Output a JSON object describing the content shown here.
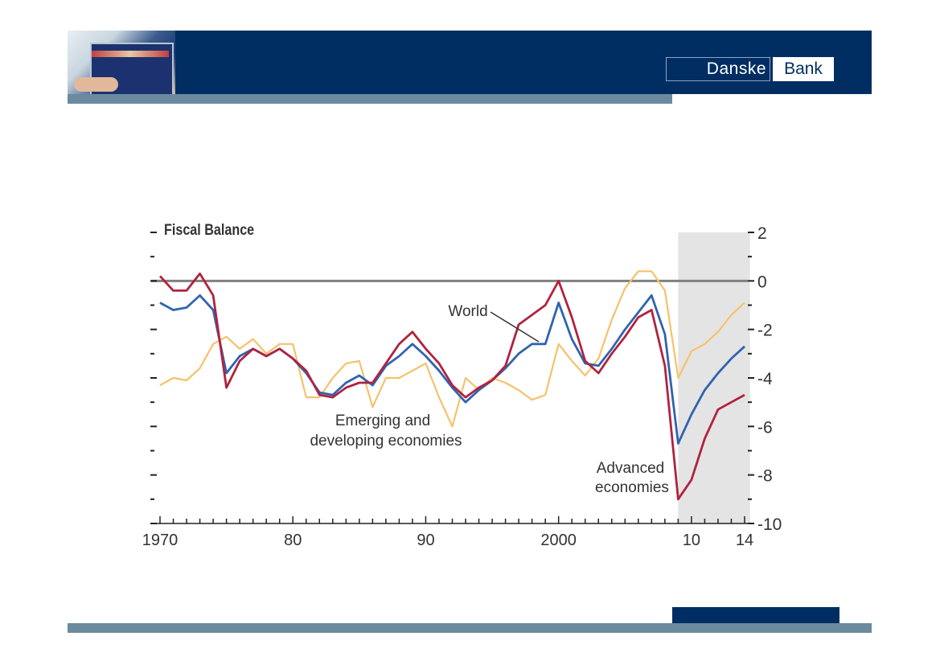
{
  "header": {
    "logo_part1": "Danske",
    "logo_part2": "Bank"
  },
  "colors": {
    "navy": "#002e63",
    "bar": "#6a8aa0",
    "advanced": "#b0233f",
    "world": "#2f64b0",
    "emerging": "#f5c26b",
    "forecast_shade": "#e4e4e4",
    "zero_line": "#808080"
  },
  "chart_data": {
    "type": "line",
    "title": "Fiscal Balance",
    "xlabel": "",
    "ylabel": "",
    "xlim": [
      1970,
      2014
    ],
    "ylim": [
      -10,
      2
    ],
    "y_ticks": [
      "2",
      "0",
      "-2",
      "-4",
      "-6",
      "-8",
      "-10"
    ],
    "y_tick_values": [
      2,
      0,
      -2,
      -4,
      -6,
      -8,
      -10
    ],
    "x_tick_labels": [
      "1970",
      "80",
      "90",
      "2000",
      "10",
      "14"
    ],
    "x_tick_values": [
      1970,
      1980,
      1990,
      2000,
      2010,
      2014
    ],
    "forecast_region": [
      2009,
      2014.4
    ],
    "x": [
      1970,
      1971,
      1972,
      1973,
      1974,
      1975,
      1976,
      1977,
      1978,
      1979,
      1980,
      1981,
      1982,
      1983,
      1984,
      1985,
      1986,
      1987,
      1988,
      1989,
      1990,
      1991,
      1992,
      1993,
      1994,
      1995,
      1996,
      1997,
      1998,
      1999,
      2000,
      2001,
      2002,
      2003,
      2004,
      2005,
      2006,
      2007,
      2008,
      2009,
      2010,
      2011,
      2012,
      2013,
      2014
    ],
    "series": [
      {
        "name": "Emerging and developing economies",
        "label": [
          "Emerging and",
          "developing economies"
        ],
        "color_key": "emerging",
        "values": [
          -4.3,
          -4.0,
          -4.1,
          -3.6,
          -2.6,
          -2.3,
          -2.8,
          -2.4,
          -3.0,
          -2.6,
          -2.6,
          -4.8,
          -4.8,
          -4.0,
          -3.4,
          -3.3,
          -5.2,
          -4.0,
          -4.0,
          -3.7,
          -3.4,
          -4.8,
          -6.0,
          -4.0,
          -4.5,
          -4.0,
          -4.2,
          -4.5,
          -4.9,
          -4.7,
          -2.6,
          -3.3,
          -3.9,
          -3.2,
          -1.6,
          -0.3,
          0.4,
          0.4,
          -0.4,
          -4.0,
          -2.9,
          -2.6,
          -2.1,
          -1.4,
          -0.9
        ]
      },
      {
        "name": "World",
        "label": [
          "World"
        ],
        "color_key": "world",
        "values": [
          -0.9,
          -1.2,
          -1.1,
          -0.6,
          -1.2,
          -3.8,
          -3.1,
          -2.8,
          -3.1,
          -2.8,
          -3.2,
          -3.8,
          -4.6,
          -4.7,
          -4.2,
          -3.9,
          -4.3,
          -3.5,
          -3.1,
          -2.6,
          -3.1,
          -3.7,
          -4.4,
          -5.0,
          -4.5,
          -4.1,
          -3.6,
          -3.0,
          -2.6,
          -2.6,
          -0.9,
          -2.4,
          -3.4,
          -3.5,
          -2.8,
          -2.0,
          -1.3,
          -0.6,
          -2.2,
          -6.7,
          -5.5,
          -4.5,
          -3.8,
          -3.2,
          -2.7
        ]
      },
      {
        "name": "Advanced economies",
        "label": [
          "Advanced",
          "economies"
        ],
        "color_key": "advanced",
        "values": [
          0.2,
          -0.4,
          -0.4,
          0.3,
          -0.6,
          -4.4,
          -3.3,
          -2.8,
          -3.1,
          -2.8,
          -3.2,
          -3.7,
          -4.7,
          -4.8,
          -4.4,
          -4.2,
          -4.2,
          -3.4,
          -2.6,
          -2.1,
          -2.8,
          -3.4,
          -4.3,
          -4.8,
          -4.4,
          -4.1,
          -3.5,
          -1.8,
          -1.4,
          -1.0,
          0.0,
          -1.5,
          -3.3,
          -3.8,
          -3.0,
          -2.3,
          -1.5,
          -1.2,
          -3.5,
          -9.0,
          -8.2,
          -6.5,
          -5.3,
          -5.0,
          -4.7
        ]
      }
    ]
  }
}
